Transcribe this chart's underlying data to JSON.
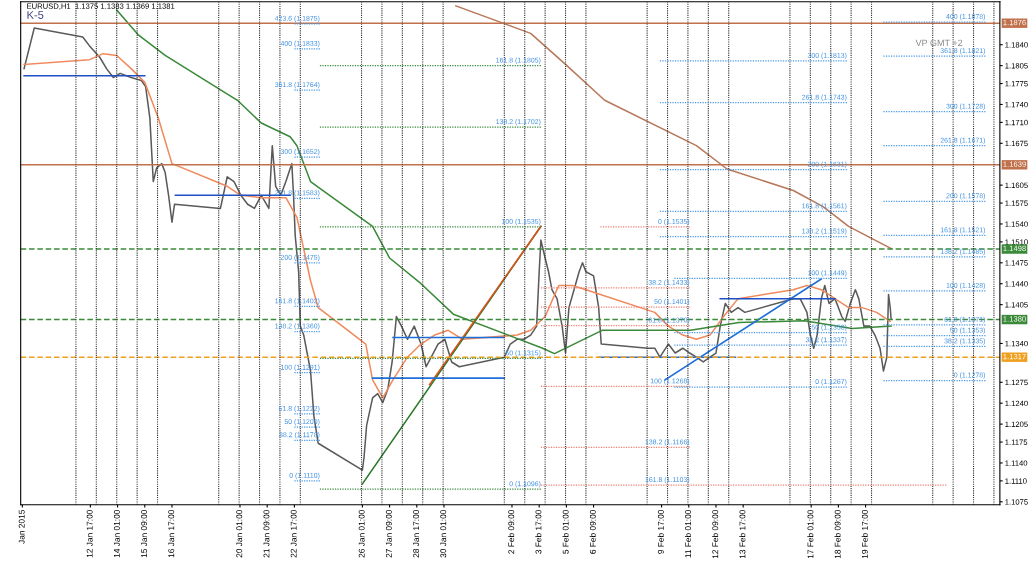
{
  "chart_data": {
    "type": "line",
    "title": "EURUSD,H1  1.1375 1.1383 1.1369 1.1381",
    "xlim": [
      "2015-01-09T07:00",
      "2015-02-26T07:00"
    ],
    "ylim": [
      1.107,
      1.1912
    ],
    "xticks": [
      {
        "value": "2015-01-09T09:00",
        "label": "Jan 2015"
      },
      {
        "value": "2015-01-12T17:00",
        "label": "12 Jan 17:00"
      },
      {
        "value": "2015-01-14T01:00",
        "label": "14 Jan 01:00"
      },
      {
        "value": "2015-01-15T09:00",
        "label": "15 Jan 09:00"
      },
      {
        "value": "2015-01-16T17:00",
        "label": "16 Jan 17:00"
      },
      {
        "value": "2015-01-20T01:00",
        "label": "20 Jan 01:00"
      },
      {
        "value": "2015-01-21T09:00",
        "label": "21 Jan 09:00"
      },
      {
        "value": "2015-01-22T17:00",
        "label": "22 Jan 17:00"
      },
      {
        "value": "2015-01-26T01:00",
        "label": "26 Jan 01:00"
      },
      {
        "value": "2015-01-27T09:00",
        "label": "27 Jan 09:00"
      },
      {
        "value": "2015-01-28T17:00",
        "label": "28 Jan 17:00"
      },
      {
        "value": "2015-01-30T01:00",
        "label": "30 Jan 01:00"
      },
      {
        "value": "2015-02-02T09:00",
        "label": "2 Feb 09:00"
      },
      {
        "value": "2015-02-03T17:00",
        "label": "3 Feb 17:00"
      },
      {
        "value": "2015-02-05T01:00",
        "label": "5 Feb 01:00"
      },
      {
        "value": "2015-02-06T09:00",
        "label": "6 Feb 09:00"
      },
      {
        "value": "2015-02-09T17:00",
        "label": "9 Feb 17:00"
      },
      {
        "value": "2015-02-11T01:00",
        "label": "11 Feb 01:00"
      },
      {
        "value": "2015-02-12T09:00",
        "label": "12 Feb 09:00"
      },
      {
        "value": "2015-02-13T17:00",
        "label": "13 Feb 17:00"
      },
      {
        "value": "2015-02-17T01:00",
        "label": "17 Feb 01:00"
      },
      {
        "value": "2015-02-18T09:00",
        "label": "18 Feb 09:00"
      },
      {
        "value": "2015-02-19T17:00",
        "label": "19 Feb 17:00"
      }
    ],
    "yticks": [
      {
        "value": 1.184,
        "label": "1.1840"
      },
      1.1805,
      1.1775,
      {
        "value": 1.174,
        "label": "1.1740"
      },
      {
        "value": 1.171,
        "label": "1.1710"
      },
      1.1675,
      1.1605,
      1.1575,
      {
        "value": 1.154,
        "label": "1.1540"
      },
      {
        "value": 1.151,
        "label": "1.1510"
      },
      1.1475,
      {
        "value": 1.144,
        "label": "1.1440"
      },
      1.1405,
      {
        "value": 1.134,
        "label": "1.1340"
      },
      1.1275,
      {
        "value": 1.124,
        "label": "1.1240"
      },
      1.1205,
      1.1175,
      {
        "value": 1.114,
        "label": "1.1140"
      },
      {
        "value": 1.111,
        "label": "1.1110"
      },
      1.1075
    ],
    "grid": false,
    "legend": false,
    "marker": "none",
    "series": [
      {
        "color": "#5a5a5a",
        "x": [
          "2015-01-09T11:00",
          "2015-01-09T23:00",
          "2015-01-12T08:00",
          "2015-01-12T16:00",
          "2015-01-13T04:00",
          "2015-01-13T12:00",
          "2015-01-13T20:00",
          "2015-01-14T04:00",
          "2015-01-14T17:00",
          "2015-01-15T05:00",
          "2015-01-15T10:00",
          "2015-01-15T15:00",
          "2015-01-15T19:00",
          "2015-01-15T23:00",
          "2015-01-16T05:00",
          "2015-01-16T09:00",
          "2015-01-16T13:00",
          "2015-01-16T17:00",
          "2015-01-16T20:00",
          "2015-01-19T02:00",
          "2015-01-19T10:00",
          "2015-01-19T18:00",
          "2015-01-20T02:00",
          "2015-01-20T10:00",
          "2015-01-20T18:00",
          "2015-01-21T02:00",
          "2015-01-21T11:00",
          "2015-01-21T15:00",
          "2015-01-21T19:00",
          "2015-01-22T01:00",
          "2015-01-22T07:00",
          "2015-01-22T14:00",
          "2015-01-22T16:00",
          "2015-01-22T18:00",
          "2015-01-22T22:00",
          "2015-01-23T00:00",
          "2015-01-23T04:00",
          "2015-01-23T08:00",
          "2015-01-23T12:00",
          "2015-01-23T16:00",
          "2015-01-23T21:00",
          "2015-01-26T01:00",
          "2015-01-26T03:00",
          "2015-01-26T06:00",
          "2015-01-26T13:00",
          "2015-01-26T19:00",
          "2015-01-27T01:00",
          "2015-01-27T07:00",
          "2015-01-27T12:00",
          "2015-01-27T17:00",
          "2015-01-27T23:00",
          "2015-01-28T06:00",
          "2015-01-28T14:00",
          "2015-01-28T22:00",
          "2015-01-29T04:00",
          "2015-01-29T10:00",
          "2015-01-29T18:00",
          "2015-01-30T02:00",
          "2015-01-30T10:00",
          "2015-01-30T19:00",
          "2015-02-02T00:00",
          "2015-02-02T07:00",
          "2015-02-02T15:00",
          "2015-02-02T23:00",
          "2015-02-03T07:00",
          "2015-02-03T14:00",
          "2015-02-03T17:00",
          "2015-02-03T19:00",
          "2015-02-04T00:00",
          "2015-02-04T04:00",
          "2015-02-04T08:00",
          "2015-02-04T14:00",
          "2015-02-04T20:00",
          "2015-02-05T00:00",
          "2015-02-05T04:00",
          "2015-02-05T10:00",
          "2015-02-05T16:00",
          "2015-02-05T20:00",
          "2015-02-06T00:00",
          "2015-02-06T09:00",
          "2015-02-06T15:00",
          "2015-02-06T18:00",
          "2015-02-09T01:00",
          "2015-02-09T09:00",
          "2015-02-09T15:00",
          "2015-02-10T01:00",
          "2015-02-10T09:00",
          "2015-02-10T18:00",
          "2015-02-11T02:00",
          "2015-02-11T10:00",
          "2015-02-11T18:00",
          "2015-02-12T02:00",
          "2015-02-12T09:00",
          "2015-02-12T14:00",
          "2015-02-12T20:00",
          "2015-02-13T03:00",
          "2015-02-13T11:00",
          "2015-02-13T19:00",
          "2015-02-16T04:00",
          "2015-02-16T12:00",
          "2015-02-16T20:00",
          "2015-02-17T00:00",
          "2015-02-17T04:00",
          "2015-02-17T08:00",
          "2015-02-17T13:00",
          "2015-02-17T17:00",
          "2015-02-17T22:00",
          "2015-02-18T05:00",
          "2015-02-18T13:00",
          "2015-02-18T17:00",
          "2015-02-18T23:00",
          "2015-02-19T05:00",
          "2015-02-19T09:00",
          "2015-02-19T15:00",
          "2015-02-19T22:00",
          "2015-02-20T04:00",
          "2015-02-20T10:00",
          "2015-02-20T14:00",
          "2015-02-20T18:00",
          "2015-02-20T20:00",
          "2015-02-20T22:00",
          "2015-02-20T23:00"
        ],
        "values": [
          1.18,
          1.1868,
          1.1853,
          1.1838,
          1.1819,
          1.18,
          1.1785,
          1.1792,
          1.1785,
          1.178,
          1.177,
          1.1717,
          1.1611,
          1.1634,
          1.1641,
          1.1626,
          1.1588,
          1.1543,
          1.1573,
          1.1566,
          1.1619,
          1.1611,
          1.1588,
          1.1573,
          1.1566,
          1.1588,
          1.1566,
          1.1671,
          1.1603,
          1.1588,
          1.1611,
          1.1641,
          1.1588,
          1.152,
          1.146,
          1.1369,
          1.1354,
          1.1324,
          1.1294,
          1.1218,
          1.1173,
          1.1128,
          1.115,
          1.1203,
          1.1249,
          1.1256,
          1.1241,
          1.1264,
          1.1309,
          1.1385,
          1.1369,
          1.1347,
          1.1369,
          1.1339,
          1.1301,
          1.1317,
          1.1339,
          1.1347,
          1.1309,
          1.1301,
          1.1317,
          1.1339,
          1.1347,
          1.1347,
          1.1354,
          1.1369,
          1.146,
          1.1513,
          1.1483,
          1.146,
          1.143,
          1.1415,
          1.1369,
          1.1324,
          1.14,
          1.143,
          1.146,
          1.1475,
          1.146,
          1.1453,
          1.14,
          1.1339,
          1.1332,
          1.1332,
          1.1317,
          1.1339,
          1.1324,
          1.1332,
          1.1324,
          1.1317,
          1.1309,
          1.1317,
          1.1324,
          1.1369,
          1.1407,
          1.1392,
          1.14,
          1.1392,
          1.1415,
          1.1415,
          1.1392,
          1.1354,
          1.1332,
          1.1354,
          1.1415,
          1.1437,
          1.1407,
          1.1415,
          1.1385,
          1.1377,
          1.1407,
          1.143,
          1.1415,
          1.1369,
          1.1369,
          1.1354,
          1.1332,
          1.1294,
          1.1317,
          1.1422,
          1.14,
          1.1381
        ]
      },
      {
        "color": "#f08a5d",
        "x": [
          "2015-01-09T11:00",
          "2015-01-12T16:00",
          "2015-01-13T08:00",
          "2015-01-14T00:00",
          "2015-01-14T17:00",
          "2015-01-15T09:00",
          "2015-01-16T01:00",
          "2015-01-16T17:00",
          "2015-01-19T10:00",
          "2015-01-20T02:00",
          "2015-01-21T02:00",
          "2015-01-22T07:00",
          "2015-01-22T20:00",
          "2015-01-23T12:00",
          "2015-01-23T21:00",
          "2015-01-26T05:00",
          "2015-01-26T13:00",
          "2015-01-27T01:00",
          "2015-01-27T13:00",
          "2015-01-28T06:00",
          "2015-01-28T22:00",
          "2015-01-29T14:00",
          "2015-01-30T06:00",
          "2015-01-30T23:00",
          "2015-02-02T15:00",
          "2015-02-03T07:00",
          "2015-02-04T00:00",
          "2015-02-04T16:00",
          "2015-02-05T08:00",
          "2015-02-06T00:00",
          "2015-02-06T17:00",
          "2015-02-09T09:00",
          "2015-02-10T01:00",
          "2015-02-10T18:00",
          "2015-02-11T10:00",
          "2015-02-12T02:00",
          "2015-02-12T18:00",
          "2015-02-13T11:00",
          "2015-02-16T04:00",
          "2015-02-16T20:00",
          "2015-02-17T13:00",
          "2015-02-18T05:00",
          "2015-02-18T21:00",
          "2015-02-19T13:00",
          "2015-02-20T06:00",
          "2015-02-20T22:00"
        ],
        "values": [
          1.1807,
          1.1815,
          1.1825,
          1.1822,
          1.18,
          1.1777,
          1.1717,
          1.1641,
          1.1603,
          1.1588,
          1.1584,
          1.1584,
          1.1551,
          1.1445,
          1.14,
          1.1339,
          1.1279,
          1.1249,
          1.1279,
          1.1317,
          1.1339,
          1.1354,
          1.1362,
          1.1347,
          1.1354,
          1.1362,
          1.1385,
          1.1437,
          1.1437,
          1.143,
          1.1422,
          1.1392,
          1.1369,
          1.1354,
          1.1347,
          1.1354,
          1.1385,
          1.1415,
          1.143,
          1.1437,
          1.143,
          1.1415,
          1.14,
          1.14,
          1.1392,
          1.1377
        ]
      },
      {
        "color": "#3a8a3a",
        "x": [
          "2015-01-14T00:00",
          "2015-01-15T01:00",
          "2015-01-16T09:00",
          "2015-01-19T22:00",
          "2015-01-21T02:00",
          "2015-01-22T12:00",
          "2015-01-22T20:00",
          "2015-01-23T12:00",
          "2015-01-26T13:00",
          "2015-01-27T09:00",
          "2015-01-28T22:00",
          "2015-01-30T12:00",
          "2015-02-03T21:00",
          "2015-02-04T11:00",
          "2015-02-06T19:00",
          "2015-02-11T03:00",
          "2015-02-13T12:00",
          "2015-02-16T17:00",
          "2015-02-19T01:00",
          "2015-02-20T23:00"
        ],
        "values": [
          1.1898,
          1.1857,
          1.1822,
          1.1747,
          1.1709,
          1.1686,
          1.1671,
          1.1611,
          1.1536,
          1.1483,
          1.144,
          1.1389,
          1.1332,
          1.1323,
          1.1362,
          1.1362,
          1.1375,
          1.1378,
          1.1365,
          1.1369
        ]
      },
      {
        "color": "#b8785a",
        "x": [
          "2015-01-30T15:00",
          "2015-02-03T07:00",
          "2015-02-05T00:00",
          "2015-02-06T22:00",
          "2015-02-11T10:00",
          "2015-02-12T22:00",
          "2015-02-16T04:00",
          "2015-02-17T15:00",
          "2015-02-18T21:00",
          "2015-02-20T23:00"
        ],
        "values": [
          1.1905,
          1.1859,
          1.1807,
          1.1747,
          1.1671,
          1.1632,
          1.1596,
          1.1569,
          1.1536,
          1.1499
        ]
      },
      {
        "color": "#2a7a2a",
        "x": [
          "2015-01-26T01:00",
          "2015-02-03T19:00"
        ],
        "values": [
          1.1105,
          1.1536
        ]
      },
      {
        "color": "#e0501a",
        "x": [
          "2015-01-29T08:00",
          "2015-02-03T19:00"
        ],
        "values": [
          1.1271,
          1.1536
        ]
      },
      {
        "color": "#1e6fd9",
        "x": [
          "2015-02-09T21:00",
          "2015-02-17T13:00"
        ],
        "values": [
          1.1279,
          1.1448
        ]
      },
      {
        "color": "#1e50c8",
        "x": [
          "2015-01-09T11:00",
          "2015-01-15T09:00"
        ],
        "values": [
          1.1788,
          1.1788
        ]
      },
      {
        "color": "#1e50c8",
        "x": [
          "2015-01-16T21:00",
          "2015-01-22T12:00"
        ],
        "values": [
          1.1588,
          1.1588
        ]
      },
      {
        "color": "#1e6fd9",
        "x": [
          "2015-01-26T13:00",
          "2015-02-02T00:00"
        ],
        "values": [
          1.1282,
          1.1282
        ]
      },
      {
        "color": "#1e6fd9",
        "x": [
          "2015-01-27T13:00",
          "2015-02-02T00:00"
        ],
        "values": [
          1.135,
          1.135
        ]
      },
      {
        "color": "#1e6fd9",
        "x": [
          "2015-02-06T15:00",
          "2015-02-13T08:00"
        ],
        "values": [
          1.1317,
          1.1317
        ]
      },
      {
        "color": "#1e50c8",
        "x": [
          "2015-02-12T14:00",
          "2015-02-18T05:00"
        ],
        "values": [
          1.1415,
          1.1415
        ]
      },
      {
        "color": "#4a9ae8",
        "line_style": "dotted",
        "x": [
          "2015-01-22T17:00",
          "2015-01-23T23:00"
        ],
        "values": [
          1.1875,
          1.1875
        ]
      },
      {
        "color": "#4a9ae8",
        "line_style": "dotted",
        "x": [
          "2015-01-22T17:00",
          "2015-01-23T23:00"
        ],
        "values": [
          1.1833,
          1.1833
        ]
      },
      {
        "color": "#4a9ae8",
        "line_style": "dotted",
        "x": [
          "2015-01-22T17:00",
          "2015-01-23T23:00"
        ],
        "values": [
          1.1764,
          1.1764
        ]
      },
      {
        "color": "#4a9ae8",
        "line_style": "dotted",
        "x": [
          "2015-01-22T17:00",
          "2015-01-23T23:00"
        ],
        "values": [
          1.1652,
          1.1652
        ]
      },
      {
        "color": "#4a9ae8",
        "line_style": "dotted",
        "x": [
          "2015-01-22T17:00",
          "2015-01-23T23:00"
        ],
        "values": [
          1.1583,
          1.1583
        ]
      },
      {
        "color": "#4a9ae8",
        "line_style": "dotted",
        "x": [
          "2015-01-22T17:00",
          "2015-01-23T23:00"
        ],
        "values": [
          1.1475,
          1.1475
        ]
      },
      {
        "color": "#4a9ae8",
        "line_style": "dotted",
        "x": [
          "2015-01-22T17:00",
          "2015-01-23T23:00"
        ],
        "values": [
          1.1402,
          1.1402
        ]
      },
      {
        "color": "#4a9ae8",
        "line_style": "dotted",
        "x": [
          "2015-01-22T17:00",
          "2015-01-23T23:00"
        ],
        "values": [
          1.136,
          1.136
        ]
      },
      {
        "color": "#4a9ae8",
        "line_style": "dotted",
        "x": [
          "2015-01-22T17:00",
          "2015-01-23T23:00"
        ],
        "values": [
          1.1291,
          1.1291
        ]
      },
      {
        "color": "#4a9ae8",
        "line_style": "dotted",
        "x": [
          "2015-01-22T17:00",
          "2015-01-23T23:00"
        ],
        "values": [
          1.1222,
          1.1222
        ]
      },
      {
        "color": "#4a9ae8",
        "line_style": "dotted",
        "x": [
          "2015-01-22T17:00",
          "2015-01-23T23:00"
        ],
        "values": [
          1.12,
          1.12
        ]
      },
      {
        "color": "#4a9ae8",
        "line_style": "dotted",
        "x": [
          "2015-01-22T17:00",
          "2015-01-23T23:00"
        ],
        "values": [
          1.1178,
          1.1178
        ]
      },
      {
        "color": "#4a9ae8",
        "line_style": "dotted",
        "x": [
          "2015-01-22T17:00",
          "2015-01-23T23:00"
        ],
        "values": [
          1.111,
          1.111
        ]
      },
      {
        "color": "#3a8a3a",
        "line_style": "dotted",
        "x": [
          "2015-01-23T23:00",
          "2015-02-03T19:00"
        ],
        "values": [
          1.1805,
          1.1805
        ]
      },
      {
        "color": "#3a8a3a",
        "line_style": "dotted",
        "x": [
          "2015-01-23T23:00",
          "2015-02-03T19:00"
        ],
        "values": [
          1.1702,
          1.1702
        ]
      },
      {
        "color": "#3a8a3a",
        "line_style": "dotted",
        "x": [
          "2015-01-23T23:00",
          "2015-02-03T19:00"
        ],
        "values": [
          1.1535,
          1.1535
        ]
      },
      {
        "color": "#3a8a3a",
        "line_style": "dotted",
        "x": [
          "2015-01-23T23:00",
          "2015-02-03T19:00"
        ],
        "values": [
          1.1315,
          1.1315
        ]
      },
      {
        "color": "#3a8a3a",
        "line_style": "dotted",
        "x": [
          "2015-01-23T23:00",
          "2015-02-03T19:00"
        ],
        "values": [
          1.1096,
          1.1096
        ]
      },
      {
        "color": "#4a9ae8",
        "line_style": "dotted",
        "x": [
          "2015-02-09T15:00",
          "2015-02-18T19:00"
        ],
        "values": [
          1.1813,
          1.1813
        ]
      },
      {
        "color": "#4a9ae8",
        "line_style": "dotted",
        "x": [
          "2015-02-09T15:00",
          "2015-02-18T19:00"
        ],
        "values": [
          1.1743,
          1.1743
        ]
      },
      {
        "color": "#4a9ae8",
        "line_style": "dotted",
        "x": [
          "2015-02-09T15:00",
          "2015-02-18T19:00"
        ],
        "values": [
          1.1631,
          1.1631
        ]
      },
      {
        "color": "#4a9ae8",
        "line_style": "dotted",
        "x": [
          "2015-02-09T15:00",
          "2015-02-18T19:00"
        ],
        "values": [
          1.1561,
          1.1561
        ]
      },
      {
        "color": "#4a9ae8",
        "line_style": "dotted",
        "x": [
          "2015-02-09T15:00",
          "2015-02-18T19:00"
        ],
        "values": [
          1.1519,
          1.1519
        ]
      },
      {
        "color": "#4a9ae8",
        "line_style": "dotted",
        "x": [
          "2015-02-20T14:00",
          "2015-02-25T14:00"
        ],
        "values": [
          1.1878,
          1.1878
        ]
      },
      {
        "color": "#4a9ae8",
        "line_style": "dotted",
        "x": [
          "2015-02-20T14:00",
          "2015-02-25T14:00"
        ],
        "values": [
          1.1821,
          1.1821
        ]
      },
      {
        "color": "#4a9ae8",
        "line_style": "dotted",
        "x": [
          "2015-02-20T14:00",
          "2015-02-25T14:00"
        ],
        "values": [
          1.1728,
          1.1728
        ]
      },
      {
        "color": "#4a9ae8",
        "line_style": "dotted",
        "x": [
          "2015-02-20T14:00",
          "2015-02-25T14:00"
        ],
        "values": [
          1.1671,
          1.1671
        ]
      },
      {
        "color": "#4a9ae8",
        "line_style": "dotted",
        "x": [
          "2015-02-20T14:00",
          "2015-02-25T14:00"
        ],
        "values": [
          1.1578,
          1.1578
        ]
      },
      {
        "color": "#4a9ae8",
        "line_style": "dotted",
        "x": [
          "2015-02-20T14:00",
          "2015-02-25T14:00"
        ],
        "values": [
          1.1521,
          1.1521
        ]
      },
      {
        "color": "#4a9ae8",
        "line_style": "dotted",
        "x": [
          "2015-02-20T14:00",
          "2015-02-25T14:00"
        ],
        "values": [
          1.1485,
          1.1485
        ]
      },
      {
        "color": "#4a9ae8",
        "line_style": "dotted",
        "x": [
          "2015-02-20T14:00",
          "2015-02-25T14:00"
        ],
        "values": [
          1.1428,
          1.1428
        ]
      },
      {
        "color": "#4a9ae8",
        "line_style": "dotted",
        "x": [
          "2015-02-20T14:00",
          "2015-02-25T14:00"
        ],
        "values": [
          1.1371,
          1.1371
        ]
      },
      {
        "color": "#4a9ae8",
        "line_style": "dotted",
        "x": [
          "2015-02-20T14:00",
          "2015-02-25T14:00"
        ],
        "values": [
          1.1353,
          1.1353
        ]
      },
      {
        "color": "#4a9ae8",
        "line_style": "dotted",
        "x": [
          "2015-02-20T14:00",
          "2015-02-25T14:00"
        ],
        "values": [
          1.1335,
          1.1335
        ]
      },
      {
        "color": "#4a9ae8",
        "line_style": "dotted",
        "x": [
          "2015-02-20T14:00",
          "2015-02-25T14:00"
        ],
        "values": [
          1.1278,
          1.1278
        ]
      },
      {
        "color": "#f08070",
        "line_style": "dotted",
        "x": [
          "2015-02-06T17:00",
          "2015-02-11T02:00"
        ],
        "values": [
          1.1535,
          1.1535
        ]
      },
      {
        "color": "#f08070",
        "line_style": "dotted",
        "x": [
          "2015-02-03T19:00",
          "2015-02-11T02:00"
        ],
        "values": [
          1.1433,
          1.1433
        ]
      },
      {
        "color": "#f08070",
        "line_style": "dotted",
        "x": [
          "2015-02-03T19:00",
          "2015-02-11T02:00"
        ],
        "values": [
          1.1401,
          1.1401
        ]
      },
      {
        "color": "#f08070",
        "line_style": "dotted",
        "x": [
          "2015-02-03T19:00",
          "2015-02-11T02:00"
        ],
        "values": [
          1.137,
          1.137
        ]
      },
      {
        "color": "#f08070",
        "line_style": "dotted",
        "x": [
          "2015-02-03T19:00",
          "2015-02-11T02:00"
        ],
        "values": [
          1.1268,
          1.1268
        ]
      },
      {
        "color": "#f08070",
        "line_style": "dotted",
        "x": [
          "2015-02-03T19:00",
          "2015-02-11T02:00"
        ],
        "values": [
          1.1166,
          1.1166
        ]
      },
      {
        "color": "#f08070",
        "line_style": "dotted",
        "x": [
          "2015-02-03T19:00",
          "2015-02-23T16:00"
        ],
        "values": [
          1.1103,
          1.1103
        ]
      },
      {
        "color": "#4a9ae8",
        "line_style": "dotted",
        "x": [
          "2015-02-10T08:00",
          "2015-02-18T19:00"
        ],
        "values": [
          1.1449,
          1.1449
        ]
      },
      {
        "color": "#4a9ae8",
        "line_style": "dotted",
        "x": [
          "2015-02-10T08:00",
          "2015-02-18T19:00"
        ],
        "values": [
          1.1358,
          1.1358
        ]
      },
      {
        "color": "#4a9ae8",
        "line_style": "dotted",
        "x": [
          "2015-02-10T08:00",
          "2015-02-18T19:00"
        ],
        "values": [
          1.1337,
          1.1337
        ]
      },
      {
        "color": "#4a9ae8",
        "line_style": "dotted",
        "x": [
          "2015-02-10T08:00",
          "2015-02-18T19:00"
        ],
        "values": [
          1.1267,
          1.1267
        ]
      }
    ],
    "ref_lines": [
      {
        "axis": "y",
        "value": 1.1876,
        "label": "1.1876",
        "color": "#c0704a",
        "line_style": "solid"
      },
      {
        "axis": "y",
        "value": 1.1639,
        "label": "1.1639",
        "color": "#c0704a",
        "line_style": "solid"
      },
      {
        "axis": "y",
        "value": 1.1498,
        "label": "1.1498",
        "color": "#3a8a3a",
        "line_style": "dashed"
      },
      {
        "axis": "y",
        "value": 1.138,
        "label": "1.1380",
        "color": "#3a8a3a",
        "line_style": "dashed"
      },
      {
        "axis": "y",
        "value": 1.1317,
        "label": "1.1317",
        "color": "#f0a020",
        "line_style": "dashed"
      },
      {
        "axis": "x",
        "value": "2015-01-12",
        "color": "#333333",
        "line_style": "dotted"
      },
      {
        "axis": "x",
        "value": "2015-01-13",
        "color": "#333333",
        "line_style": "dotted"
      },
      {
        "axis": "x",
        "value": "2015-01-14",
        "color": "#333333",
        "line_style": "dotted"
      },
      {
        "axis": "x",
        "value": "2015-01-15",
        "color": "#333333",
        "line_style": "dotted"
      },
      {
        "axis": "x",
        "value": "2015-01-16",
        "color": "#333333",
        "line_style": "dotted"
      },
      {
        "axis": "x",
        "value": "2015-01-19",
        "color": "#333333",
        "line_style": "dotted"
      },
      {
        "axis": "x",
        "value": "2015-01-20",
        "color": "#333333",
        "line_style": "dotted"
      },
      {
        "axis": "x",
        "value": "2015-01-21",
        "color": "#333333",
        "line_style": "dotted"
      },
      {
        "axis": "x",
        "value": "2015-01-22",
        "color": "#333333",
        "line_style": "dotted"
      },
      {
        "axis": "x",
        "value": "2015-01-23",
        "color": "#333333",
        "line_style": "dotted"
      },
      {
        "axis": "x",
        "value": "2015-01-26",
        "color": "#333333",
        "line_style": "dotted"
      },
      {
        "axis": "x",
        "value": "2015-01-27",
        "color": "#333333",
        "line_style": "dotted"
      },
      {
        "axis": "x",
        "value": "2015-01-28",
        "color": "#333333",
        "line_style": "dotted"
      },
      {
        "axis": "x",
        "value": "2015-01-29",
        "color": "#333333",
        "line_style": "dotted"
      },
      {
        "axis": "x",
        "value": "2015-01-30",
        "color": "#333333",
        "line_style": "dotted"
      },
      {
        "axis": "x",
        "value": "2015-02-02",
        "color": "#333333",
        "line_style": "dotted"
      },
      {
        "axis": "x",
        "value": "2015-02-03",
        "color": "#333333",
        "line_style": "dotted"
      },
      {
        "axis": "x",
        "value": "2015-02-04",
        "color": "#333333",
        "line_style": "dotted"
      },
      {
        "axis": "x",
        "value": "2015-02-05",
        "color": "#333333",
        "line_style": "dotted"
      },
      {
        "axis": "x",
        "value": "2015-02-06",
        "color": "#333333",
        "line_style": "dotted"
      },
      {
        "axis": "x",
        "value": "2015-02-09",
        "color": "#333333",
        "line_style": "dotted"
      },
      {
        "axis": "x",
        "value": "2015-02-10",
        "color": "#333333",
        "line_style": "dotted"
      },
      {
        "axis": "x",
        "value": "2015-02-11",
        "color": "#333333",
        "line_style": "dotted"
      },
      {
        "axis": "x",
        "value": "2015-02-12",
        "color": "#333333",
        "line_style": "dotted"
      },
      {
        "axis": "x",
        "value": "2015-02-13",
        "color": "#333333",
        "line_style": "dotted"
      },
      {
        "axis": "x",
        "value": "2015-02-16",
        "color": "#333333",
        "line_style": "dotted"
      },
      {
        "axis": "x",
        "value": "2015-02-17",
        "color": "#333333",
        "line_style": "dotted"
      },
      {
        "axis": "x",
        "value": "2015-02-18",
        "color": "#333333",
        "line_style": "dotted"
      },
      {
        "axis": "x",
        "value": "2015-02-19",
        "color": "#333333",
        "line_style": "dotted"
      },
      {
        "axis": "x",
        "value": "2015-02-20",
        "color": "#333333",
        "line_style": "dotted"
      },
      {
        "axis": "x",
        "value": "2015-02-23",
        "color": "#333333",
        "line_style": "dotted"
      },
      {
        "axis": "x",
        "value": "2015-02-24",
        "color": "#333333",
        "line_style": "dotted"
      },
      {
        "axis": "x",
        "value": "2015-02-25",
        "color": "#333333",
        "line_style": "dotted"
      },
      {
        "axis": "x",
        "value": "2015-02-26",
        "color": "#333333",
        "line_style": "dotted"
      }
    ],
    "annotations": [
      "K-5",
      "VP GMT +2",
      {
        "text": "423.6 (1.1875)",
        "x": "2015-01-23T23:00",
        "y": 1.1875
      },
      {
        "text": "400 (1.1833)",
        "x": "2015-01-23T23:00",
        "y": 1.1833
      },
      {
        "text": "361.8 (1.1764)",
        "x": "2015-01-23T23:00",
        "y": 1.1764
      },
      {
        "text": "300 (1.1652)",
        "x": "2015-01-23T23:00",
        "y": 1.1652
      },
      {
        "text": "261.8 (1.1583)",
        "x": "2015-01-23T23:00",
        "y": 1.1583
      },
      {
        "text": "200 (1.1475)",
        "x": "2015-01-23T23:00",
        "y": 1.1475
      },
      {
        "text": "161.8 (1.1402)",
        "x": "2015-01-23T23:00",
        "y": 1.1402
      },
      {
        "text": "138.2 (1.1360)",
        "x": "2015-01-23T23:00",
        "y": 1.136
      },
      {
        "text": "100 (1.1291)",
        "x": "2015-01-23T23:00",
        "y": 1.1291
      },
      {
        "text": "61.8 (1.1222)",
        "x": "2015-01-23T23:00",
        "y": 1.1222
      },
      {
        "text": "50 (1.1200)",
        "x": "2015-01-23T23:00",
        "y": 1.12
      },
      {
        "text": "38.2 (1.1178)",
        "x": "2015-01-23T23:00",
        "y": 1.1178
      },
      {
        "text": "0 (1.1110)",
        "x": "2015-01-23T23:00",
        "y": 1.111
      },
      {
        "text": "161.8 (1.1805)",
        "x": "2015-02-03T19:00",
        "y": 1.1805
      },
      {
        "text": "138.2 (1.1702)",
        "x": "2015-02-03T19:00",
        "y": 1.1702
      },
      {
        "text": "100 (1.1535)",
        "x": "2015-02-03T19:00",
        "y": 1.1535
      },
      {
        "text": "50 (1.1315)",
        "x": "2015-02-03T19:00",
        "y": 1.1315
      },
      {
        "text": "0 (1.1096)",
        "x": "2015-02-03T19:00",
        "y": 1.1096
      },
      {
        "text": "300 (1.1813)",
        "x": "2015-02-18T19:00",
        "y": 1.1813
      },
      {
        "text": "261.8 (1.1743)",
        "x": "2015-02-18T19:00",
        "y": 1.1743
      },
      {
        "text": "200 (1.1631)",
        "x": "2015-02-18T19:00",
        "y": 1.1631
      },
      {
        "text": "161.8 (1.1561)",
        "x": "2015-02-18T19:00",
        "y": 1.1561
      },
      {
        "text": "138.2 (1.1519)",
        "x": "2015-02-18T19:00",
        "y": 1.1519
      },
      {
        "text": "400 (1.1878)",
        "x": "2015-02-25T14:00",
        "y": 1.1878
      },
      {
        "text": "361.8 (1.1821)",
        "x": "2015-02-25T14:00",
        "y": 1.1821
      },
      {
        "text": "300 (1.1728)",
        "x": "2015-02-25T14:00",
        "y": 1.1728
      },
      {
        "text": "261.8 (1.1671)",
        "x": "2015-02-25T14:00",
        "y": 1.1671
      },
      {
        "text": "200 (1.1578)",
        "x": "2015-02-25T14:00",
        "y": 1.1578
      },
      {
        "text": "161.8 (1.1521)",
        "x": "2015-02-25T14:00",
        "y": 1.1521
      },
      {
        "text": "138.2 (1.1485)",
        "x": "2015-02-25T14:00",
        "y": 1.1485
      },
      {
        "text": "100 (1.1428)",
        "x": "2015-02-25T14:00",
        "y": 1.1428
      },
      {
        "text": "61.8 (1.1371)",
        "x": "2015-02-25T14:00",
        "y": 1.1371
      },
      {
        "text": "50 (1.1353)",
        "x": "2015-02-25T14:00",
        "y": 1.1353
      },
      {
        "text": "38.2 (1.1335)",
        "x": "2015-02-25T14:00",
        "y": 1.1335
      },
      {
        "text": "0 (1.1278)",
        "x": "2015-02-25T14:00",
        "y": 1.1278
      },
      {
        "text": "0 (1.1535)",
        "x": "2015-02-11T02:00",
        "y": 1.1535
      },
      {
        "text": "38.2 (1.1433)",
        "x": "2015-02-11T02:00",
        "y": 1.1433
      },
      {
        "text": "50 (1.1401)",
        "x": "2015-02-11T02:00",
        "y": 1.1401
      },
      {
        "text": "61.8 (1.1370)",
        "x": "2015-02-11T02:00",
        "y": 1.137
      },
      {
        "text": "100 (1.1268)",
        "x": "2015-02-11T02:00",
        "y": 1.1268
      },
      {
        "text": "138.2 (1.1166)",
        "x": "2015-02-11T02:00",
        "y": 1.1166
      },
      {
        "text": "161.8 (1.1103)",
        "x": "2015-02-11T02:00",
        "y": 1.1103
      },
      {
        "text": "100 (1.1449)",
        "x": "2015-02-18T19:00",
        "y": 1.1449
      },
      {
        "text": "50 (1.1358)",
        "x": "2015-02-18T19:00",
        "y": 1.1358
      },
      {
        "text": "38.2 (1.1337)",
        "x": "2015-02-18T19:00",
        "y": 1.1337
      },
      {
        "text": "0 (1.1267)",
        "x": "2015-02-18T19:00",
        "y": 1.1267
      }
    ]
  }
}
